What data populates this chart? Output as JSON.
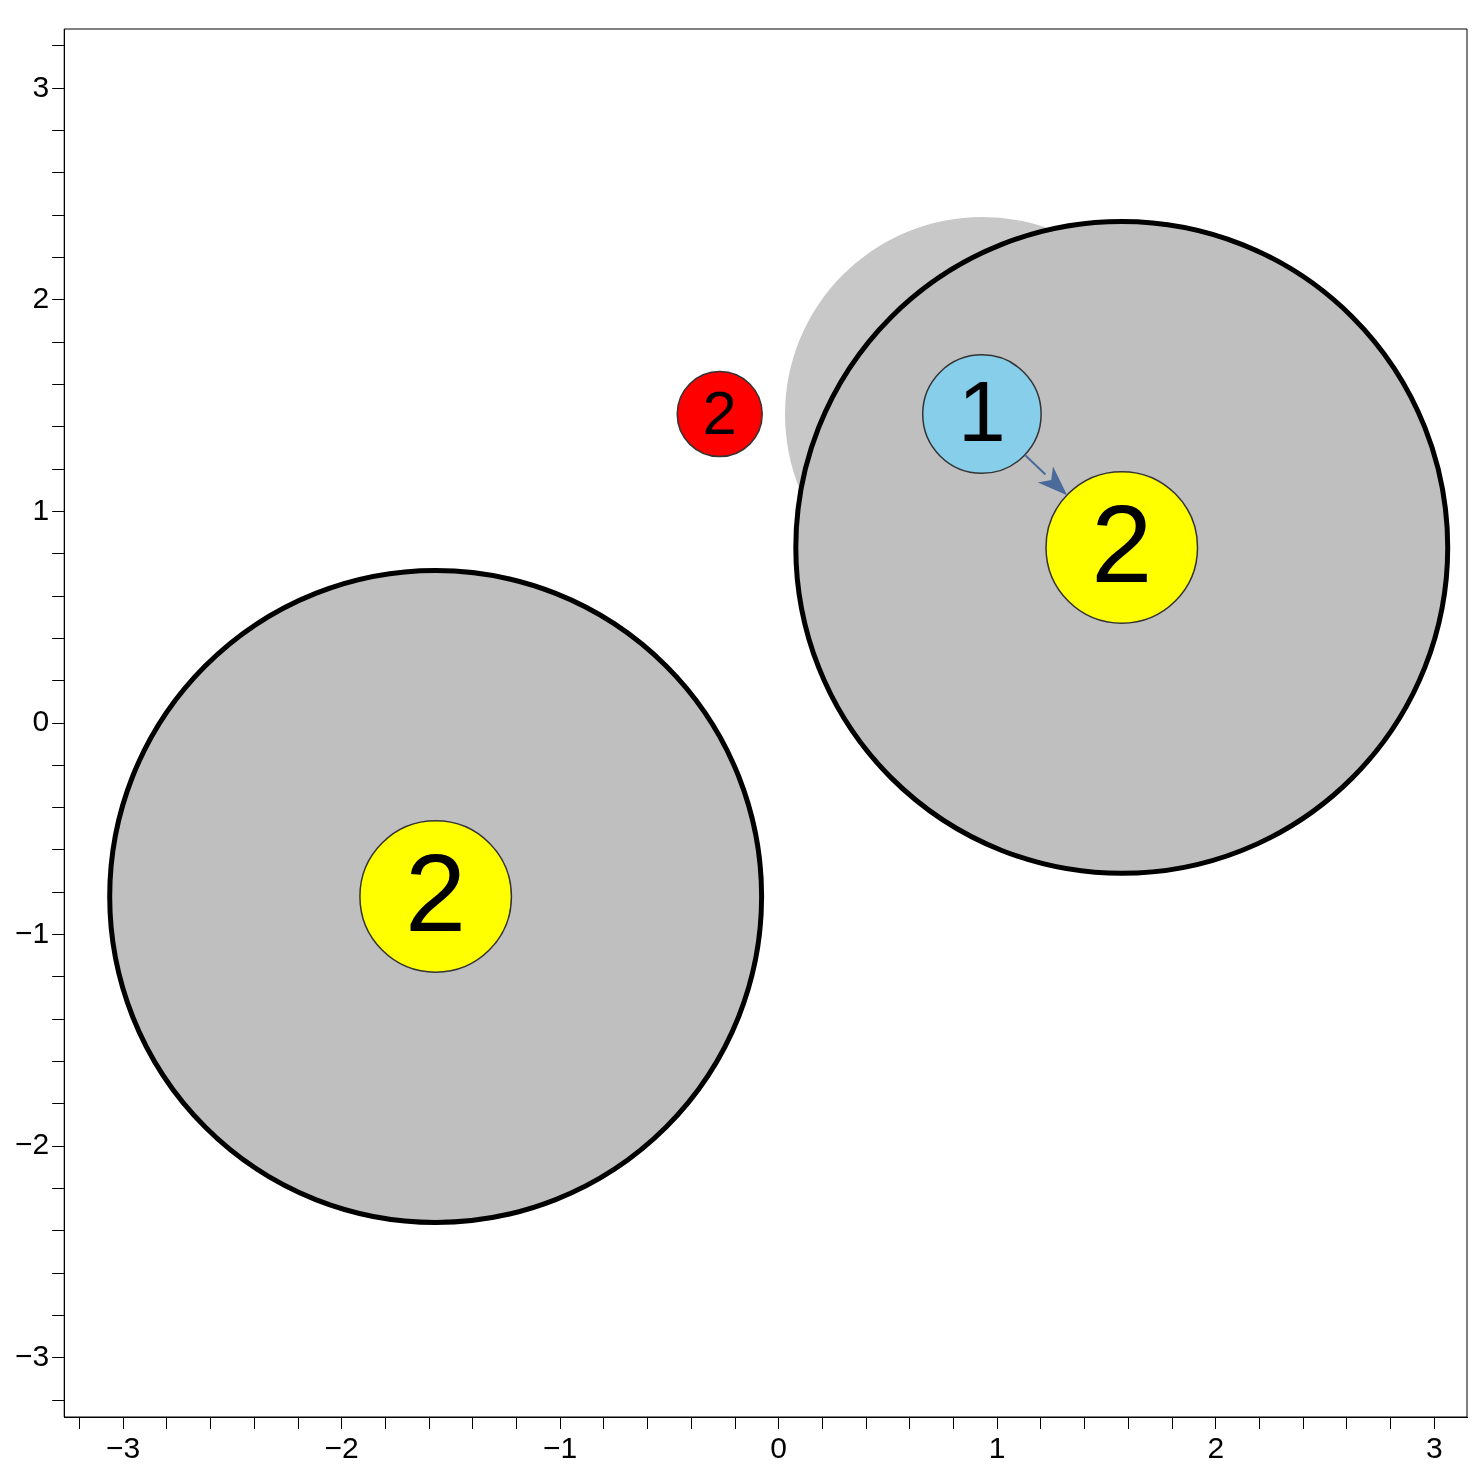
{
  "chart_data": {
    "type": "bubble",
    "series": [
      {
        "color": "#bfbfbf",
        "x": [
          -1.57,
          1.57
        ],
        "values": [
          -0.82,
          0.83
        ],
        "sizes": [
          1,
          1
        ]
      },
      {
        "color": "#ffff00",
        "x": [
          -1.57,
          1.57
        ],
        "values": [
          -0.82,
          0.83
        ],
        "sizes": [
          0.054,
          0.054
        ]
      },
      {
        "color": "#87ceeb",
        "x": [
          0.93
        ],
        "values": [
          1.46
        ],
        "sizes": [
          0.033
        ]
      },
      {
        "color": "#ff0000",
        "x": [
          -0.27
        ],
        "values": [
          1.46
        ],
        "sizes": [
          0.017
        ]
      }
    ],
    "annotations": [
      {
        "text": "2",
        "x": -0.27,
        "y": 1.46
      },
      {
        "text": "1",
        "x": 0.93,
        "y": 1.46
      },
      {
        "text": "2",
        "x": 1.57,
        "y": 0.83
      },
      {
        "text": "2",
        "x": -1.57,
        "y": -0.82
      }
    ],
    "xlim": [
      -3.27,
      3.15
    ],
    "ylim": [
      -3.28,
      3.28
    ],
    "xticks": [
      {
        "value": -3.2,
        "label": null
      },
      {
        "value": -3,
        "label": "−3"
      },
      {
        "value": -2.8,
        "label": null
      },
      {
        "value": -2.6,
        "label": null
      },
      {
        "value": -2.4,
        "label": null
      },
      {
        "value": -2.2,
        "label": null
      },
      {
        "value": -2,
        "label": "−2"
      },
      {
        "value": -1.8,
        "label": null
      },
      {
        "value": -1.6,
        "label": null
      },
      {
        "value": -1.4,
        "label": null
      },
      {
        "value": -1.2,
        "label": null
      },
      {
        "value": -1,
        "label": "−1"
      },
      {
        "value": -0.8,
        "label": null
      },
      {
        "value": -0.6,
        "label": null
      },
      {
        "value": -0.4,
        "label": null
      },
      {
        "value": -0.2,
        "label": null
      },
      0,
      {
        "value": 0.2,
        "label": null
      },
      {
        "value": 0.4,
        "label": null
      },
      {
        "value": 0.6,
        "label": null
      },
      {
        "value": 0.8,
        "label": null
      },
      1,
      {
        "value": 1.2,
        "label": null
      },
      {
        "value": 1.4,
        "label": null
      },
      {
        "value": 1.6,
        "label": null
      },
      {
        "value": 1.8,
        "label": null
      },
      2,
      {
        "value": 2.2,
        "label": null
      },
      {
        "value": 2.4,
        "label": null
      },
      {
        "value": 2.6,
        "label": null
      },
      {
        "value": 2.8,
        "label": null
      },
      3
    ],
    "yticks": [
      {
        "value": -3.2,
        "label": null
      },
      {
        "value": -3,
        "label": "−3"
      },
      {
        "value": -2.8,
        "label": null
      },
      {
        "value": -2.6,
        "label": null
      },
      {
        "value": -2.4,
        "label": null
      },
      {
        "value": -2.2,
        "label": null
      },
      {
        "value": -2,
        "label": "−2"
      },
      {
        "value": -1.8,
        "label": null
      },
      {
        "value": -1.6,
        "label": null
      },
      {
        "value": -1.4,
        "label": null
      },
      {
        "value": -1.2,
        "label": null
      },
      {
        "value": -1,
        "label": "−1"
      },
      {
        "value": -0.8,
        "label": null
      },
      {
        "value": -0.6,
        "label": null
      },
      {
        "value": -0.4,
        "label": null
      },
      {
        "value": -0.2,
        "label": null
      },
      0,
      {
        "value": 0.2,
        "label": null
      },
      {
        "value": 0.4,
        "label": null
      },
      {
        "value": 0.6,
        "label": null
      },
      {
        "value": 0.8,
        "label": null
      },
      1,
      {
        "value": 1.2,
        "label": null
      },
      {
        "value": 1.4,
        "label": null
      },
      {
        "value": 1.6,
        "label": null
      },
      {
        "value": 1.8,
        "label": null
      },
      2,
      {
        "value": 2.2,
        "label": null
      },
      {
        "value": 2.4,
        "label": null
      },
      {
        "value": 2.6,
        "label": null
      },
      {
        "value": 2.8,
        "label": null
      },
      3,
      {
        "value": 3.2,
        "label": null
      }
    ],
    "grid": false,
    "legend": false
  }
}
